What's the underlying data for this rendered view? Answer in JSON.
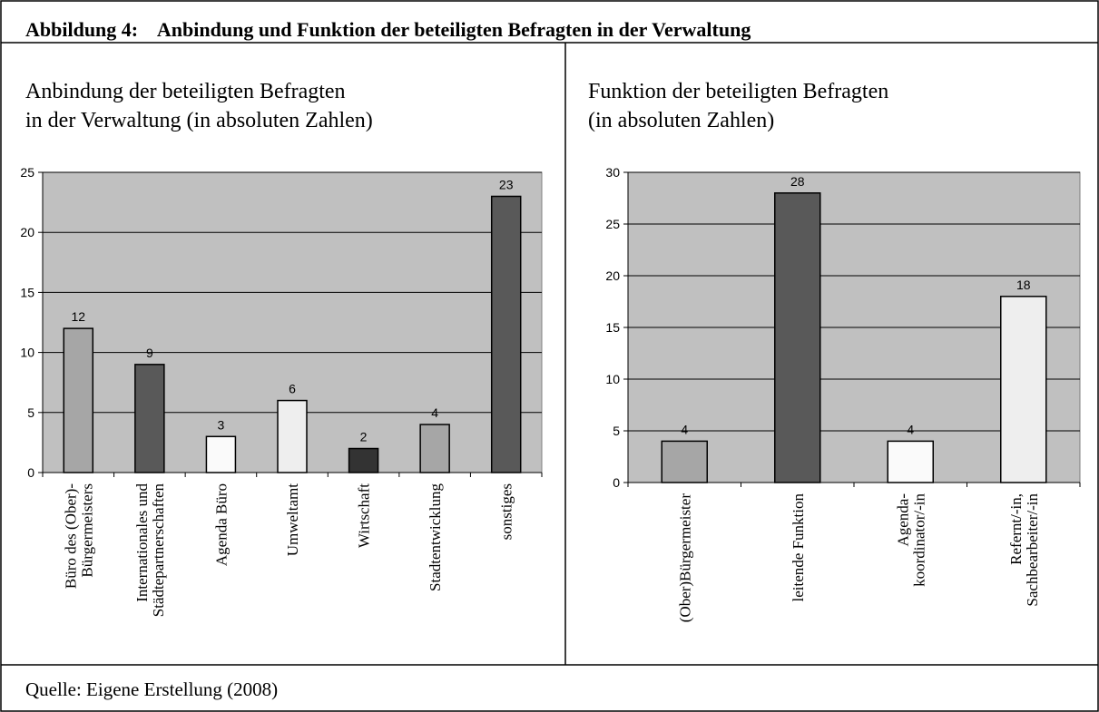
{
  "figure_title": "Abbildung 4:    Anbindung und Funktion der beteiligten Befragten in der Verwaltung",
  "source": "Quelle: Eigene Erstellung (2008)",
  "chart_data": [
    {
      "type": "bar",
      "title": "Anbindung der beteiligten Befragten\nin der Verwaltung (in absoluten Zahlen)",
      "categories": [
        "Büro des (Ober)-\nBürgermeisters",
        "Internationales und\nStädtepartnerschaften",
        "Agenda Büro",
        "Umweltamt",
        "Wirtschaft",
        "Stadtentwicklung",
        "sonstiges"
      ],
      "values": [
        12,
        9,
        3,
        6,
        2,
        4,
        23
      ],
      "colors": [
        "#a6a6a6",
        "#595959",
        "#fafafa",
        "#eeeeee",
        "#333333",
        "#a6a6a6",
        "#595959"
      ],
      "ylim": [
        0,
        25
      ],
      "yticks": [
        0,
        5,
        10,
        15,
        20,
        25
      ],
      "grid": true
    },
    {
      "type": "bar",
      "title": "Funktion der beteiligten Befragten\n(in absoluten Zahlen)",
      "categories": [
        "(Ober)Bürgermeister",
        "leitende Funktion",
        "Agenda-\nkoordinator/-in",
        "Refernt/-in,\nSachbearbeiter/-in"
      ],
      "values": [
        4,
        28,
        4,
        18
      ],
      "colors": [
        "#a6a6a6",
        "#595959",
        "#fafafa",
        "#eeeeee"
      ],
      "ylim": [
        0,
        30
      ],
      "yticks": [
        0,
        5,
        10,
        15,
        20,
        25,
        30
      ],
      "grid": true
    }
  ]
}
